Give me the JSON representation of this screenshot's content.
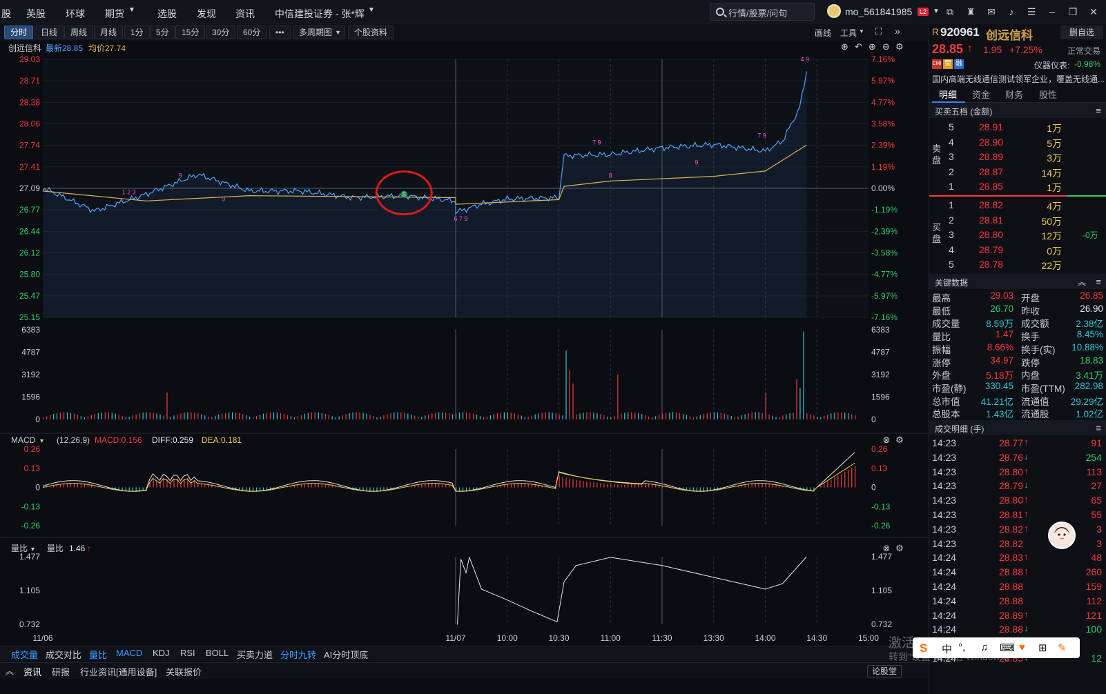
{
  "menu": [
    "股",
    "英股",
    "环球",
    "期货",
    "选股",
    "发现",
    "资讯",
    "中信建投证券 - 张*辉"
  ],
  "search": {
    "placeholder": "行情/股票/问句"
  },
  "user": {
    "name": "mo_561841985",
    "badge": "L2"
  },
  "toolbar": {
    "buttons": [
      "分时",
      "日线",
      "周线",
      "月线",
      "1分",
      "5分",
      "15分",
      "30分",
      "60分",
      "•••",
      "多周期图",
      "个股资料"
    ],
    "active": "分时",
    "right": [
      "画线",
      "工具"
    ]
  },
  "info": {
    "name": "创远信科",
    "latest_label": "最新28.85",
    "avg_label": "均价27.74"
  },
  "price_axis": {
    "left": [
      "29.03",
      "28.71",
      "28.38",
      "28.06",
      "27.74",
      "27.41",
      "27.09",
      "26.77",
      "26.44",
      "26.12",
      "25.80",
      "25.47",
      "25.15"
    ],
    "right": [
      "7.16%",
      "5.97%",
      "4.77%",
      "3.58%",
      "2.39%",
      "1.19%",
      "0.00%",
      "-1.19%",
      "-2.39%",
      "-3.58%",
      "-4.77%",
      "-5.97%",
      "-7.16%"
    ]
  },
  "volume_axis": [
    "6383",
    "4787",
    "3192",
    "1596",
    "0"
  ],
  "macd": {
    "title": "MACD",
    "params": "(12,26,9)",
    "macd": "MACD:0.156",
    "diff": "DIFF:0.259",
    "dea": "DEA:0.181",
    "axis": [
      "0.26",
      "0.13",
      "0",
      "-0.13",
      "-0.26"
    ]
  },
  "volratio": {
    "title": "量比",
    "label": "量比",
    "value": "1.46",
    "axis": [
      "1.477",
      "1.105",
      "0.732"
    ]
  },
  "time_axis": [
    "11/06",
    "11/07",
    "10:00",
    "10:30",
    "11:00",
    "11:30",
    "13:30",
    "14:00",
    "14:30",
    "15:00"
  ],
  "chart_data": {
    "type": "line",
    "title": "",
    "days": [
      "11/06",
      "11/07"
    ],
    "prev_close": 27.09,
    "ylim": [
      25.15,
      29.03
    ],
    "series": [
      {
        "name": "price",
        "x": [
          "11/06 09:30",
          "11/06 10:00",
          "11/06 10:30",
          "11/06 11:00",
          "11/06 13:00",
          "11/06 13:30",
          "11/06 14:00",
          "11/06 14:30",
          "11/06 15:00",
          "11/07 09:30",
          "11/07 09:45",
          "11/07 10:00",
          "11/07 10:30",
          "11/07 10:33",
          "11/07 11:00",
          "11/07 11:30",
          "11/07 13:30",
          "11/07 14:00",
          "11/07 14:10",
          "11/07 14:20",
          "11/07 14:24"
        ],
        "values": [
          27.1,
          26.75,
          27.0,
          27.3,
          27.05,
          27.05,
          26.95,
          26.98,
          26.9,
          26.73,
          26.85,
          26.93,
          26.95,
          27.58,
          27.6,
          27.7,
          27.75,
          27.65,
          27.8,
          28.3,
          28.85
        ]
      },
      {
        "name": "avg",
        "x": [
          "11/06 09:30",
          "11/06 10:30",
          "11/06 13:00",
          "11/06 15:00",
          "11/07 09:30",
          "11/07 10:30",
          "11/07 10:33",
          "11/07 11:00",
          "11/07 13:30",
          "11/07 14:00",
          "11/07 14:24"
        ],
        "values": [
          27.05,
          26.9,
          26.98,
          26.95,
          26.85,
          26.92,
          27.12,
          27.2,
          27.27,
          27.35,
          27.74
        ]
      }
    ],
    "volume_ymax": 6383,
    "macd_ylim": [
      -0.26,
      0.26
    ],
    "volratio_ylim": [
      0.732,
      1.477
    ]
  },
  "quote": {
    "prefix": "R",
    "code": "920961",
    "name": "创远信科",
    "del_label": "删自选",
    "price": "28.85",
    "arrow": "↑",
    "change": "1.95",
    "pct": "+7.25%",
    "status": "正常交易",
    "tags": [
      "CMI",
      "荣",
      "融"
    ],
    "indicator": "仪器仪表:",
    "indicator_val": "-0.98%",
    "desc": "国内高端无线通信测试领军企业，覆盖无线通..."
  },
  "tabs": [
    "明细",
    "资金",
    "财务",
    "股性"
  ],
  "orderbook": {
    "title": "买卖五档 (金额)",
    "sell_label": "卖盘",
    "buy_label": "买盘",
    "sell": [
      {
        "lv": "5",
        "price": "28.91",
        "amt": "1万"
      },
      {
        "lv": "4",
        "price": "28.90",
        "amt": "5万"
      },
      {
        "lv": "3",
        "price": "28.89",
        "amt": "3万"
      },
      {
        "lv": "2",
        "price": "28.87",
        "amt": "14万"
      },
      {
        "lv": "1",
        "price": "28.85",
        "amt": "1万"
      }
    ],
    "buy": [
      {
        "lv": "1",
        "price": "28.82",
        "amt": "4万"
      },
      {
        "lv": "2",
        "price": "28.81",
        "amt": "50万"
      },
      {
        "lv": "3",
        "price": "28.80",
        "amt": "12万",
        "extra": "-0万"
      },
      {
        "lv": "4",
        "price": "28.79",
        "amt": "0万"
      },
      {
        "lv": "5",
        "price": "28.78",
        "amt": "22万"
      }
    ]
  },
  "keydata": {
    "title": "关键数据",
    "rows": [
      [
        "最高",
        "29.03",
        "开盘",
        "26.85"
      ],
      [
        "最低",
        "26.70",
        "昨收",
        "26.90"
      ],
      [
        "成交量",
        "8.59万",
        "成交额",
        "2.38亿"
      ],
      [
        "量比",
        "1.47",
        "换手",
        "8.45%"
      ],
      [
        "振幅",
        "8.66%",
        "换手(实)",
        "10.88%"
      ],
      [
        "涨停",
        "34.97",
        "跌停",
        "18.83"
      ],
      [
        "外盘",
        "5.18万",
        "内盘",
        "3.41万"
      ],
      [
        "市盈(静)",
        "330.45",
        "市盈(TTM)",
        "282.98"
      ],
      [
        "总市值",
        "41.21亿",
        "流通值",
        "29.29亿"
      ],
      [
        "总股本",
        "1.43亿",
        "流通股",
        "1.02亿"
      ]
    ]
  },
  "trades": {
    "title": "成交明细 (手)",
    "rows": [
      {
        "t": "14:23",
        "p": "28.77",
        "d": "↑",
        "v": "91"
      },
      {
        "t": "14:23",
        "p": "28.76",
        "d": "↓",
        "v": "254"
      },
      {
        "t": "14:23",
        "p": "28.80",
        "d": "↑",
        "v": "113"
      },
      {
        "t": "14:23",
        "p": "28.79",
        "d": "↓",
        "v": "27"
      },
      {
        "t": "14:23",
        "p": "28.80",
        "d": "↑",
        "v": "65"
      },
      {
        "t": "14:23",
        "p": "28.81",
        "d": "↑",
        "v": "55"
      },
      {
        "t": "14:23",
        "p": "28.82",
        "d": "↑",
        "v": "3"
      },
      {
        "t": "14:23",
        "p": "28.82",
        "d": "",
        "v": "3"
      },
      {
        "t": "14:24",
        "p": "28.83",
        "d": "↑",
        "v": "48"
      },
      {
        "t": "14:24",
        "p": "28.88",
        "d": "↑",
        "v": "260"
      },
      {
        "t": "14:24",
        "p": "28.88",
        "d": "",
        "v": "159"
      },
      {
        "t": "14:24",
        "p": "28.88",
        "d": "",
        "v": "112"
      },
      {
        "t": "14:24",
        "p": "28.89",
        "d": "↑",
        "v": "121"
      },
      {
        "t": "14:24",
        "p": "28.88",
        "d": "↓",
        "v": "100"
      },
      {
        "t": "14:24",
        "p": "",
        "d": "",
        "v": ""
      },
      {
        "t": "14:24",
        "p": "28.85",
        "d": "↓",
        "v": "12"
      }
    ]
  },
  "bottom_tabs": [
    "成交量",
    "成交对比",
    "量比",
    "MACD",
    "KDJ",
    "RSI",
    "BOLL",
    "买卖力道",
    "分时九转",
    "AI分时顶底"
  ],
  "footer_tabs": [
    "资讯",
    "研报",
    "行业资讯[通用设备]",
    "关联报价"
  ],
  "footer_btn": "论股堂",
  "watermark": [
    "激活 Windows",
    "转到\"设置\"以激活 Windows。"
  ],
  "ime": [
    "中"
  ],
  "colors": {
    "up": "#f23b3b",
    "down": "#2bd16b",
    "price_line": "#4fa3ff",
    "avg_line": "#e0b255",
    "yellow": "#f2c94c",
    "pink": "#ff4fd2"
  }
}
